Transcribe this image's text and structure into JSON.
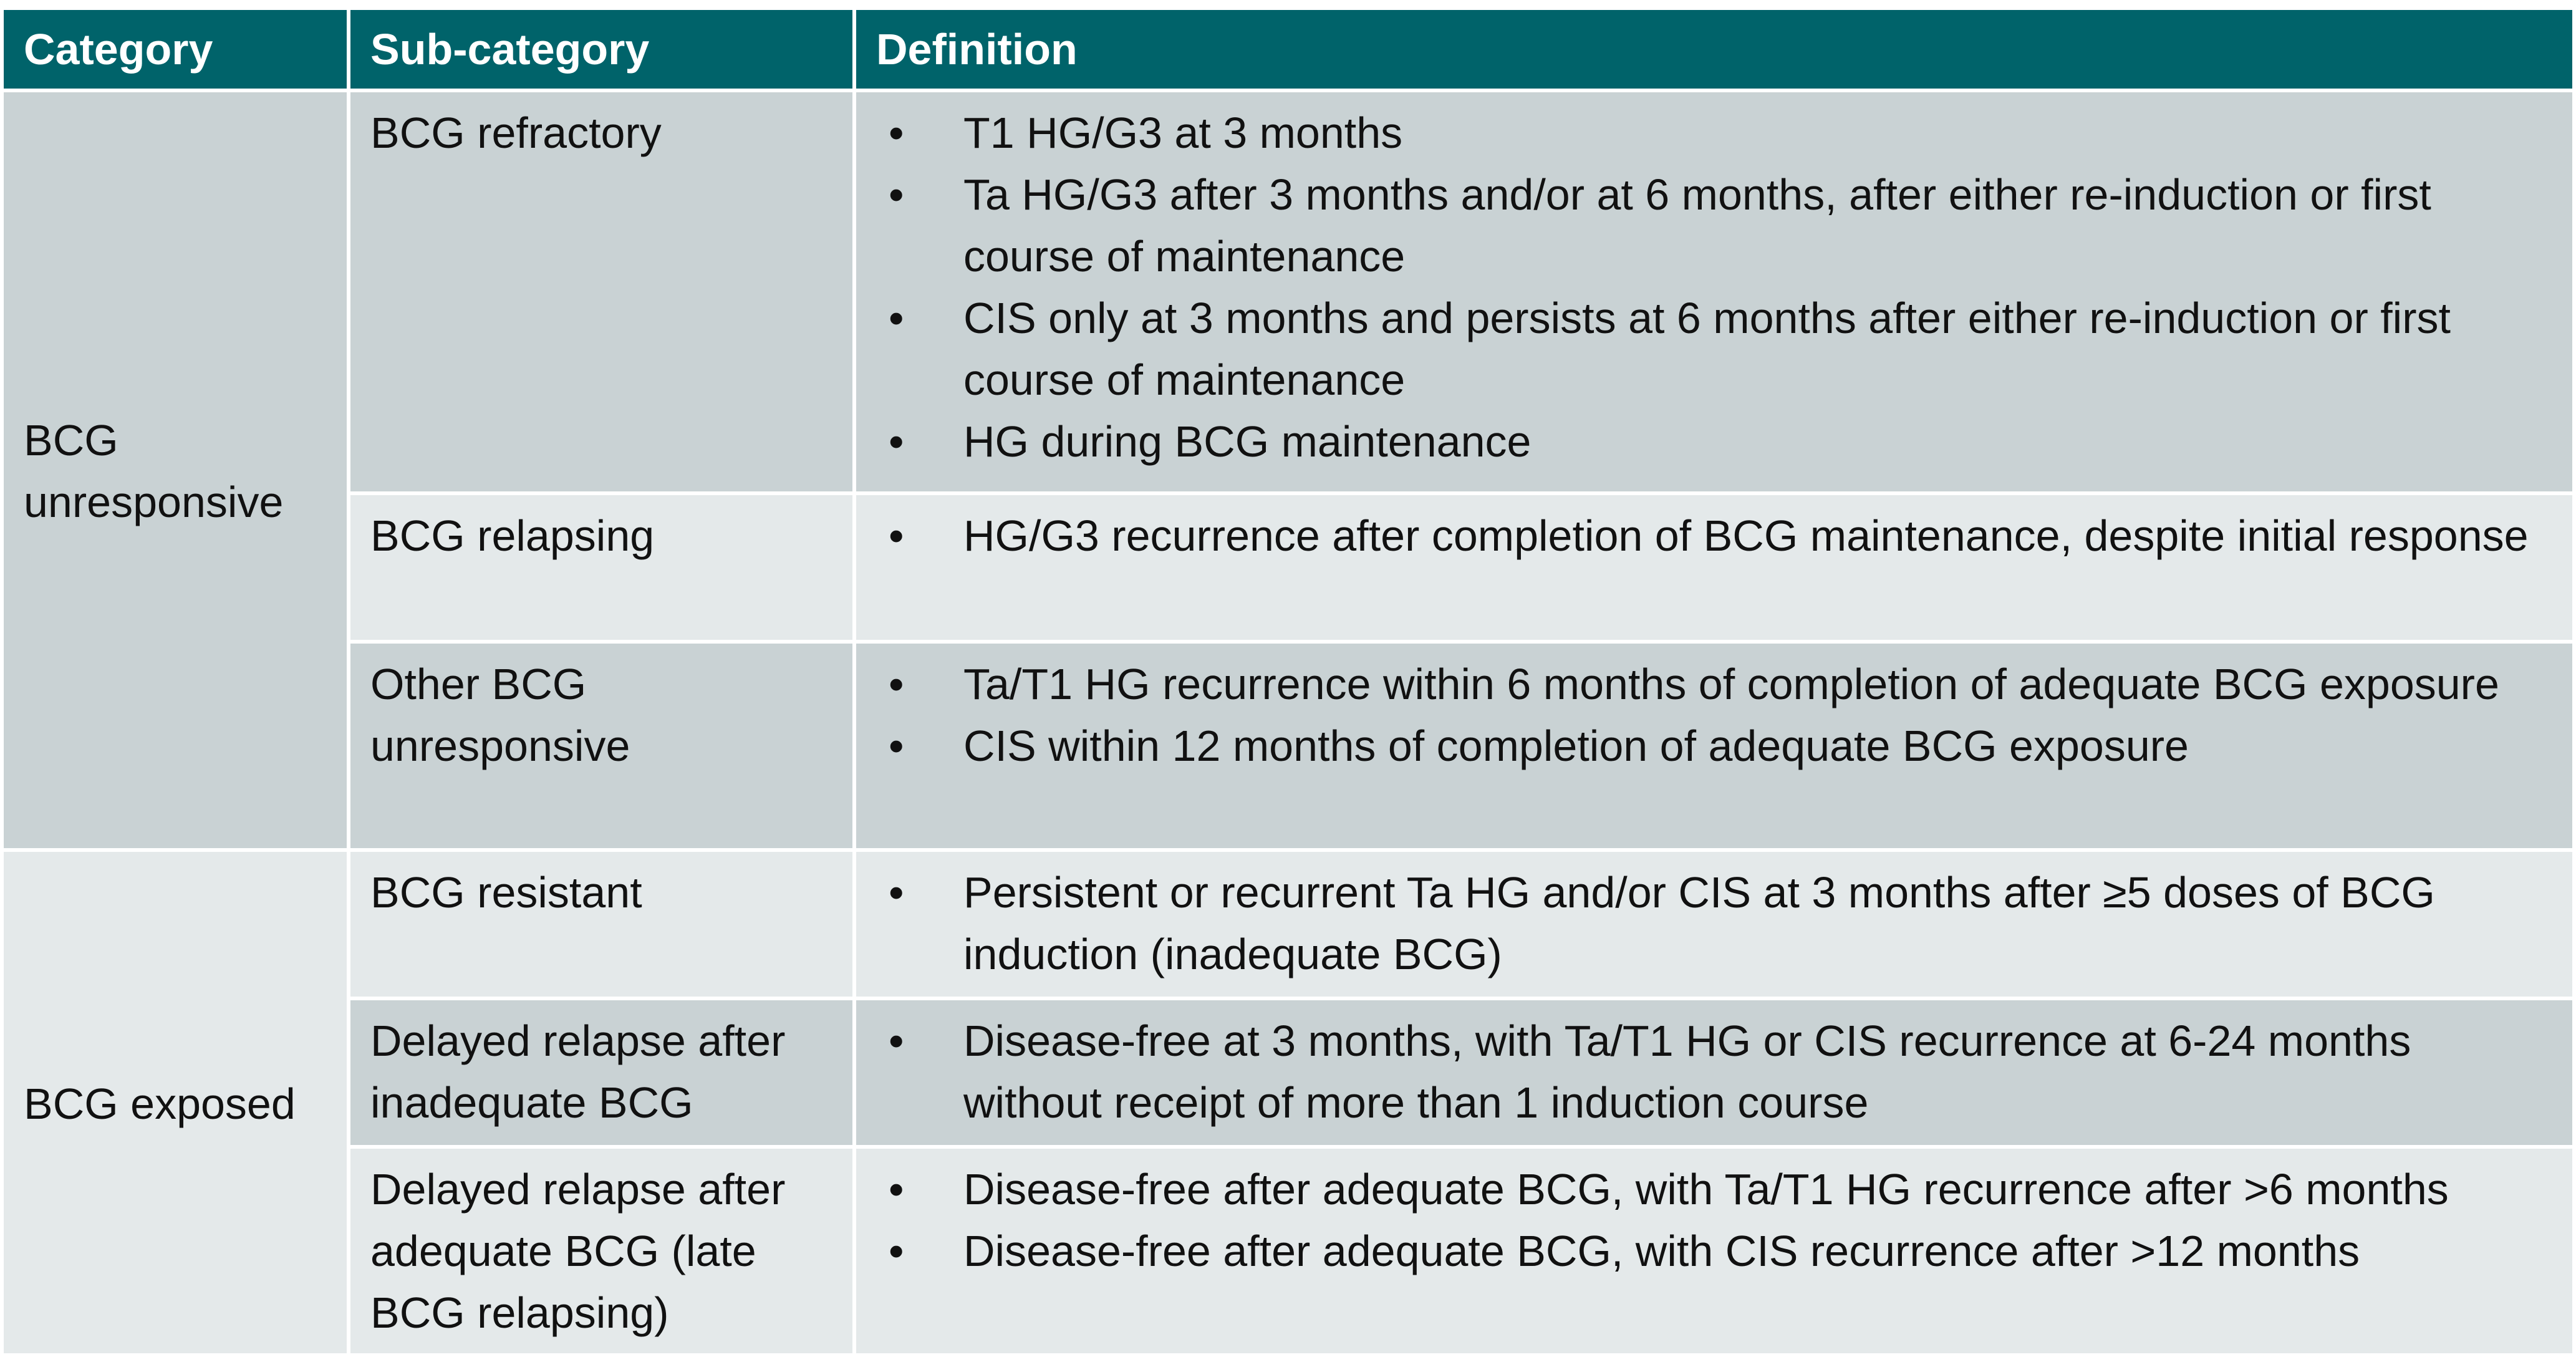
{
  "headers": {
    "category": "Category",
    "subcategory": "Sub-category",
    "definition": "Definition"
  },
  "bullet": "•",
  "groups": [
    {
      "category": "BCG unresponsive",
      "rows": [
        {
          "sub": "BCG refractory",
          "items": [
            "T1 HG/G3 at 3 months",
            "Ta HG/G3 after 3 months and/or at 6 months, after either re-induction or first course of maintenance",
            "CIS only at 3 months and persists at 6 months after either re-induction or first course of maintenance",
            "HG during BCG maintenance"
          ]
        },
        {
          "sub": "BCG relapsing",
          "items": [
            "HG/G3 recurrence after completion of BCG maintenance, despite initial response"
          ]
        },
        {
          "sub": "Other BCG unresponsive",
          "items": [
            "Ta/T1 HG recurrence within 6 months of completion of adequate BCG exposure",
            "CIS within 12 months of completion of adequate BCG exposure"
          ]
        }
      ]
    },
    {
      "category": "BCG exposed",
      "rows": [
        {
          "sub": "BCG resistant",
          "items": [
            "Persistent or recurrent Ta HG and/or CIS at 3 months after ≥5 doses of BCG induction (inadequate BCG)"
          ]
        },
        {
          "sub": "Delayed relapse after inadequate BCG",
          "items": [
            "Disease-free at 3 months, with Ta/T1 HG or CIS recurrence at 6-24 months without receipt of more than 1 induction course"
          ]
        },
        {
          "sub": "Delayed relapse after adequate BCG (late BCG relapsing)",
          "items": [
            "Disease-free after adequate BCG, with Ta/T1 HG recurrence after >6 months",
            "Disease-free after adequate BCG, with CIS recurrence after >12 months"
          ]
        }
      ]
    }
  ]
}
